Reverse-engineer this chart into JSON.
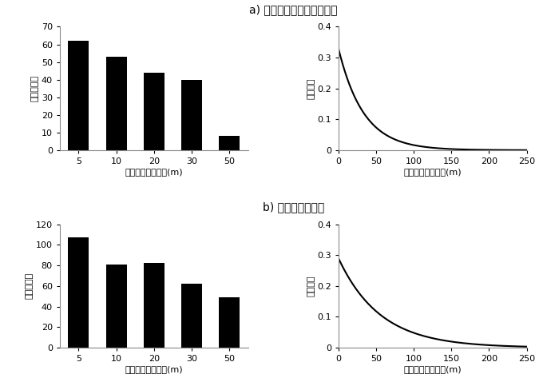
{
  "title_a": "a) タイワンマダラヨコバイ",
  "title_b": "b) ヤマトヨコバイ",
  "bar_categories": [
    5,
    10,
    20,
    30,
    50
  ],
  "bar_values_a": [
    62,
    53,
    44,
    40,
    8
  ],
  "bar_values_b": [
    107,
    81,
    82,
    62,
    49
  ],
  "bar_color": "#000000",
  "bar_width": 0.55,
  "ylim_a": [
    0,
    70
  ],
  "ylim_b": [
    0,
    120
  ],
  "yticks_a": [
    0,
    10,
    20,
    30,
    40,
    50,
    60,
    70
  ],
  "yticks_b": [
    0,
    20,
    40,
    60,
    80,
    100,
    120
  ],
  "ylabel_bar": "捕獲個体数",
  "xlabel_bar": "放飼点からの距離(m)",
  "ylabel_curve": "到達確率",
  "xlabel_curve": "放飼点からの距離(m)",
  "curve_xlim": [
    0,
    250
  ],
  "curve_ylim": [
    0,
    0.4
  ],
  "curve_yticks": [
    0,
    0.1,
    0.2,
    0.3,
    0.4
  ],
  "curve_xticks": [
    0,
    50,
    100,
    150,
    200,
    250
  ],
  "lambda_a": 0.03,
  "scale_a": 0.33,
  "lambda_b": 0.018,
  "scale_b": 0.29,
  "curve_color": "#000000",
  "background_color": "#ffffff",
  "fig_width": 6.8,
  "fig_height": 4.78
}
